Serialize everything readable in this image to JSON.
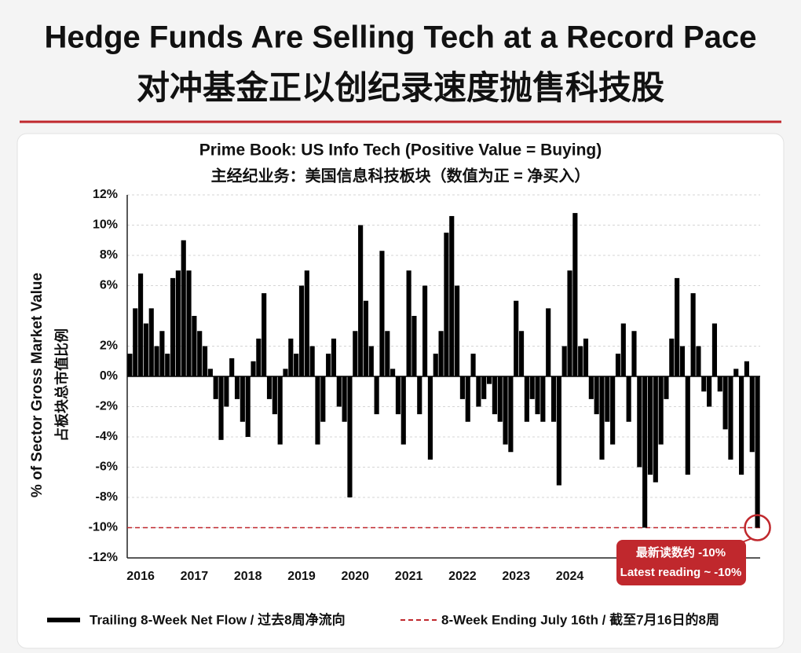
{
  "header": {
    "title": "Hedge Funds Are Selling Tech at a Record Pace",
    "subtitle": "对冲基金正以创纪录速度抛售科技股"
  },
  "chart_data": {
    "type": "bar",
    "title": "Prime Book: US Info Tech (Positive Value = Buying)",
    "subtitle": "主经纪业务：美国信息科技板块（数值为正 = 净买入）",
    "y_label": "% of Sector Gross Market Value",
    "y_label_cn": "占板块总市值比例",
    "categories": [
      null,
      null,
      "2016",
      null,
      null,
      null,
      null,
      null,
      null,
      null,
      null,
      null,
      "2017",
      null,
      null,
      null,
      null,
      null,
      null,
      null,
      null,
      null,
      "2018",
      null,
      null,
      null,
      null,
      null,
      null,
      null,
      null,
      null,
      "2019",
      null,
      null,
      null,
      null,
      null,
      null,
      null,
      null,
      null,
      "2020",
      null,
      null,
      null,
      null,
      null,
      null,
      null,
      null,
      null,
      "2021",
      null,
      null,
      null,
      null,
      null,
      null,
      null,
      null,
      null,
      "2022",
      null,
      null,
      null,
      null,
      null,
      null,
      null,
      null,
      null,
      "2023",
      null,
      null,
      null,
      null,
      null,
      null,
      null,
      null,
      null,
      "2024",
      null,
      null,
      null,
      null,
      null,
      null,
      null,
      null,
      null,
      null,
      null,
      null,
      null,
      null,
      null,
      null,
      null,
      null,
      null,
      null,
      null,
      null,
      null,
      null,
      null,
      null,
      null,
      null,
      null,
      null,
      null,
      null,
      null,
      null,
      null
    ],
    "series": [
      {
        "name": "Trailing 8-Week Net Flow / 过去8周净流向",
        "color": "#000000",
        "values": [
          1.5,
          4.5,
          6.8,
          3.5,
          4.5,
          2,
          3,
          1.5,
          6.5,
          7,
          9,
          7,
          4,
          3,
          2,
          0.5,
          -1.5,
          -4.2,
          -2,
          1.2,
          -1.5,
          -3,
          -4,
          1,
          2.5,
          5.5,
          -1.5,
          -2.5,
          -4.5,
          0.5,
          2.5,
          1.5,
          6,
          7,
          2,
          -4.5,
          -3,
          1.5,
          2.5,
          -2,
          -3,
          -8,
          3,
          10,
          5,
          2,
          -2.5,
          8.3,
          3,
          0.5,
          -2.5,
          -4.5,
          7,
          4,
          -2.5,
          6,
          -5.5,
          1.5,
          3,
          9.5,
          10.6,
          6,
          -1.5,
          -3,
          1.5,
          -2,
          -1.5,
          -0.5,
          -2.5,
          -3,
          -4.5,
          -5,
          5,
          3,
          -3,
          -1.5,
          -2.5,
          -3,
          4.5,
          -3,
          -7.2,
          2,
          7,
          10.8,
          2,
          2.5,
          -1.5,
          -2.5,
          -5.5,
          -3,
          -4.5,
          1.5,
          3.5,
          -3,
          3,
          -6,
          -10,
          -6.5,
          -7,
          -4.5,
          -1.5,
          2.5,
          6.5,
          2,
          -6.5,
          5.5,
          2,
          -1,
          -2,
          3.5,
          -1,
          -3.5,
          -5.5,
          0.5,
          -6.5,
          1,
          -5,
          -10
        ]
      }
    ],
    "reference": {
      "name": "8-Week Ending July 16th / 截至7月16日的8周",
      "value": -10,
      "color": "#c0282d"
    },
    "annotation": [
      "最新读数约 -10%",
      "Latest reading ~ -10%"
    ],
    "ylim": [
      -12,
      12
    ],
    "yticks": [
      {
        "value": 12,
        "label": "12%"
      },
      {
        "value": 10,
        "label": "10%"
      },
      {
        "value": 8,
        "label": "8%"
      },
      {
        "value": 6,
        "label": "6%"
      },
      {
        "value": 2,
        "label": "2%"
      },
      {
        "value": 0,
        "label": "0%"
      },
      {
        "value": -2,
        "label": "-2%"
      },
      {
        "value": -4,
        "label": "-4%"
      },
      {
        "value": -6,
        "label": "-6%"
      },
      {
        "value": -8,
        "label": "-8%"
      },
      {
        "value": -10,
        "label": "-10%"
      },
      {
        "value": -12,
        "label": "-12%"
      }
    ],
    "grid": true
  }
}
